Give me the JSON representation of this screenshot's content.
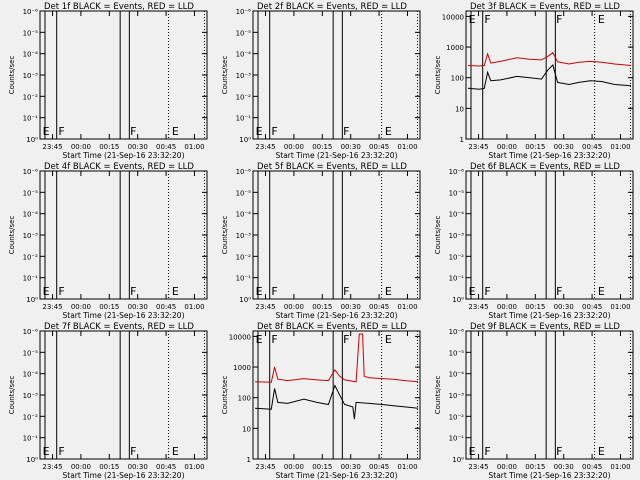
{
  "chart_data": [
    {
      "type": "line",
      "title": "Det 1f BLACK = Events, RED = LLD",
      "ylabel": "Counts/sec",
      "xlabel": "Start Time (21-Sep-16 23:32:20)",
      "x_tick_labels": [
        "23:45",
        "00:00",
        "00:15",
        "00:30",
        "00:45",
        "01:00"
      ],
      "y_tick_labels": [
        "10⁰",
        "10⁻¹",
        "10⁻²",
        "10⁻³",
        "10⁻⁴",
        "10⁻⁵",
        "10⁻⁶"
      ],
      "yscale": "log",
      "ylim": [
        1e-06,
        1
      ],
      "markers": [
        "E",
        "F",
        "F",
        "E"
      ],
      "series": []
    },
    {
      "type": "line",
      "title": "Det 2f BLACK = Events, RED = LLD",
      "ylabel": "Counts/sec",
      "xlabel": "Start Time (21-Sep-16 23:32:20)",
      "x_tick_labels": [
        "23:45",
        "00:00",
        "00:15",
        "00:30",
        "00:45",
        "01:00"
      ],
      "y_tick_labels": [
        "10⁰",
        "10⁻¹",
        "10⁻²",
        "10⁻³",
        "10⁻⁴",
        "10⁻⁵",
        "10⁻⁶"
      ],
      "yscale": "log",
      "ylim": [
        1e-06,
        1
      ],
      "markers": [
        "E",
        "F",
        "F",
        "E"
      ],
      "series": []
    },
    {
      "type": "line",
      "title": "Det 3f BLACK = Events, RED = LLD",
      "ylabel": "Counts/sec",
      "xlabel": "Start Time (21-Sep-16 23:32:20)",
      "x_tick_labels": [
        "23:45",
        "00:00",
        "00:15",
        "00:30",
        "00:45",
        "01:00"
      ],
      "y_tick_labels": [
        "1",
        "10",
        "100",
        "1000",
        "10000"
      ],
      "yscale": "log",
      "ylim": [
        1,
        15000
      ],
      "markers": [
        "E",
        "F",
        "F",
        "E"
      ],
      "series": [
        {
          "color": "#cc0000",
          "shape": [
            [
              0,
              250
            ],
            [
              0.07,
              240
            ],
            [
              0.1,
              250
            ],
            [
              0.12,
              600
            ],
            [
              0.14,
              300
            ],
            [
              0.2,
              340
            ],
            [
              0.3,
              450
            ],
            [
              0.38,
              400
            ],
            [
              0.45,
              380
            ],
            [
              0.49,
              500
            ],
            [
              0.52,
              650
            ],
            [
              0.55,
              330
            ],
            [
              0.62,
              280
            ],
            [
              0.68,
              320
            ],
            [
              0.75,
              340
            ],
            [
              0.82,
              320
            ],
            [
              0.9,
              280
            ],
            [
              1,
              250
            ]
          ]
        },
        {
          "color": "#000000",
          "shape": [
            [
              0,
              45
            ],
            [
              0.07,
              42
            ],
            [
              0.1,
              45
            ],
            [
              0.12,
              150
            ],
            [
              0.14,
              80
            ],
            [
              0.2,
              85
            ],
            [
              0.3,
              110
            ],
            [
              0.38,
              100
            ],
            [
              0.45,
              90
            ],
            [
              0.49,
              180
            ],
            [
              0.52,
              260
            ],
            [
              0.55,
              70
            ],
            [
              0.62,
              60
            ],
            [
              0.68,
              70
            ],
            [
              0.75,
              80
            ],
            [
              0.82,
              75
            ],
            [
              0.9,
              60
            ],
            [
              1,
              55
            ]
          ]
        }
      ]
    },
    {
      "type": "line",
      "title": "Det 4f BLACK = Events, RED = LLD",
      "ylabel": "Counts/sec",
      "xlabel": "Start Time (21-Sep-16 23:32:20)",
      "x_tick_labels": [
        "23:45",
        "00:00",
        "00:15",
        "00:30",
        "00:45",
        "01:00"
      ],
      "y_tick_labels": [
        "10⁰",
        "10⁻¹",
        "10⁻²",
        "10⁻³",
        "10⁻⁴",
        "10⁻⁵",
        "10⁻⁶"
      ],
      "yscale": "log",
      "ylim": [
        1e-06,
        1
      ],
      "markers": [
        "E",
        "F",
        "F",
        "E"
      ],
      "series": []
    },
    {
      "type": "line",
      "title": "Det 5f BLACK = Events, RED = LLD",
      "ylabel": "Counts/sec",
      "xlabel": "Start Time (21-Sep-16 23:32:20)",
      "x_tick_labels": [
        "23:45",
        "00:00",
        "00:15",
        "00:30",
        "00:45",
        "01:00"
      ],
      "y_tick_labels": [
        "10⁰",
        "10⁻¹",
        "10⁻²",
        "10⁻³",
        "10⁻⁴",
        "10⁻⁵",
        "10⁻⁶"
      ],
      "yscale": "log",
      "ylim": [
        1e-06,
        1
      ],
      "markers": [
        "E",
        "F",
        "F",
        "E"
      ],
      "series": []
    },
    {
      "type": "line",
      "title": "Det 6f BLACK = Events, RED = LLD",
      "ylabel": "Counts/sec",
      "xlabel": "Start Time (21-Sep-16 23:32:20)",
      "x_tick_labels": [
        "23:45",
        "00:00",
        "00:15",
        "00:30",
        "00:45",
        "01:00"
      ],
      "y_tick_labels": [
        "10⁰",
        "10⁻¹",
        "10⁻²",
        "10⁻³",
        "10⁻⁴",
        "10⁻⁵",
        "10⁻⁶"
      ],
      "yscale": "log",
      "ylim": [
        1e-06,
        1
      ],
      "markers": [
        "E",
        "F",
        "F",
        "E"
      ],
      "series": []
    },
    {
      "type": "line",
      "title": "Det 7f BLACK = Events, RED = LLD",
      "ylabel": "Counts/sec",
      "xlabel": "Start Time (21-Sep-16 23:32:20)",
      "x_tick_labels": [
        "23:45",
        "00:00",
        "00:15",
        "00:30",
        "00:45",
        "01:00"
      ],
      "y_tick_labels": [
        "10⁰",
        "10⁻¹",
        "10⁻²",
        "10⁻³",
        "10⁻⁴",
        "10⁻⁵",
        "10⁻⁶"
      ],
      "yscale": "log",
      "ylim": [
        1e-06,
        1
      ],
      "markers": [
        "E",
        "F",
        "F",
        "E"
      ],
      "series": []
    },
    {
      "type": "line",
      "title": "Det 8f BLACK = Events, RED = LLD",
      "ylabel": "Counts/sec",
      "xlabel": "Start Time (21-Sep-16 23:32:20)",
      "x_tick_labels": [
        "23:45",
        "00:00",
        "00:15",
        "00:30",
        "00:45",
        "01:00"
      ],
      "y_tick_labels": [
        "1",
        "10",
        "100",
        "1000",
        "10000"
      ],
      "yscale": "log",
      "ylim": [
        1,
        15000
      ],
      "markers": [
        "E",
        "F",
        "F",
        "E"
      ],
      "series": [
        {
          "color": "#cc0000",
          "shape": [
            [
              0,
              330
            ],
            [
              0.1,
              320
            ],
            [
              0.12,
              1000
            ],
            [
              0.14,
              400
            ],
            [
              0.2,
              360
            ],
            [
              0.3,
              420
            ],
            [
              0.38,
              380
            ],
            [
              0.45,
              360
            ],
            [
              0.49,
              800
            ],
            [
              0.52,
              500
            ],
            [
              0.55,
              380
            ],
            [
              0.62,
              330
            ],
            [
              0.64,
              12000
            ],
            [
              0.66,
              12000
            ],
            [
              0.67,
              500
            ],
            [
              0.7,
              450
            ],
            [
              0.78,
              420
            ],
            [
              0.85,
              400
            ],
            [
              0.92,
              360
            ],
            [
              1,
              330
            ]
          ]
        },
        {
          "color": "#000000",
          "shape": [
            [
              0,
              45
            ],
            [
              0.1,
              42
            ],
            [
              0.12,
              200
            ],
            [
              0.14,
              70
            ],
            [
              0.2,
              65
            ],
            [
              0.3,
              90
            ],
            [
              0.38,
              70
            ],
            [
              0.45,
              60
            ],
            [
              0.49,
              250
            ],
            [
              0.52,
              120
            ],
            [
              0.55,
              60
            ],
            [
              0.6,
              50
            ],
            [
              0.61,
              20
            ],
            [
              0.62,
              70
            ],
            [
              0.7,
              65
            ],
            [
              0.78,
              60
            ],
            [
              0.85,
              55
            ],
            [
              0.92,
              50
            ],
            [
              1,
              45
            ]
          ]
        }
      ]
    },
    {
      "type": "line",
      "title": "Det 9f BLACK = Events, RED = LLD",
      "ylabel": "Counts/sec",
      "xlabel": "Start Time (21-Sep-16 23:32:20)",
      "x_tick_labels": [
        "23:45",
        "00:00",
        "00:15",
        "00:30",
        "00:45",
        "01:00"
      ],
      "y_tick_labels": [
        "10⁰",
        "10⁻¹",
        "10⁻²",
        "10⁻³",
        "10⁻⁴",
        "10⁻⁵",
        "10⁻⁶"
      ],
      "yscale": "log",
      "ylim": [
        1e-06,
        1
      ],
      "markers": [
        "E",
        "F",
        "F",
        "E"
      ],
      "series": []
    }
  ]
}
